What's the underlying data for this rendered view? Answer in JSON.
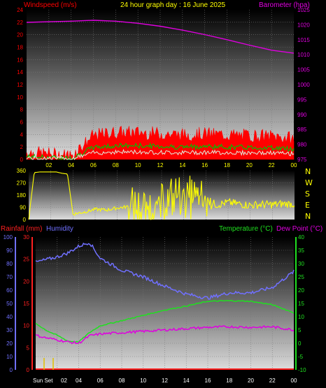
{
  "colors": {
    "wind": "#ff0000",
    "gust": "#ff0000",
    "avg_wind": "#00c000",
    "pale": "#e0f0e0",
    "baro": "#e000e0",
    "title": "#ffff00",
    "dir": "#ffff00",
    "rain": "#ff2020",
    "humidity": "#7070ff",
    "temp": "#20e020",
    "dew": "#e000e0"
  },
  "panel1": {
    "left_label": "Windspeed (m/s)",
    "title": "24 hour graph day : 16 June 2025",
    "right_label": "Barometer (hpa)",
    "left_ticks": [
      "24",
      "22",
      "20",
      "18",
      "16",
      "14",
      "12",
      "10",
      "8",
      "6",
      "4",
      "2",
      "0"
    ],
    "right_ticks": [
      "1025",
      "1020",
      "1015",
      "1010",
      "1005",
      "1000",
      "995",
      "990",
      "985",
      "980",
      "975"
    ],
    "x_ticks": [
      "02",
      "04",
      "06",
      "08",
      "10",
      "12",
      "14",
      "16",
      "18",
      "20",
      "22",
      "00"
    ]
  },
  "panel2": {
    "left_ticks": [
      "360",
      "270",
      "180",
      "90",
      "0"
    ],
    "compass": [
      "N",
      "W",
      "S",
      "E",
      "N"
    ],
    "x_ticks": [
      "02",
      "04",
      "06",
      "08",
      "10",
      "12",
      "14",
      "16",
      "18",
      "20",
      "22",
      "00"
    ]
  },
  "panel3": {
    "rain_label": "Rainfall (mm)",
    "humidity_label": "Humidity",
    "temp_label": "Temperature (°C)",
    "dew_label": "Dew Point (°C)",
    "humidity_ticks": [
      "100",
      "90",
      "80",
      "70",
      "60",
      "50",
      "40",
      "30",
      "20",
      "10",
      "0"
    ],
    "rain_ticks": [
      "30",
      "25",
      "20",
      "15",
      "10",
      "5",
      "0"
    ],
    "temp_ticks": [
      "40",
      "35",
      "30",
      "25",
      "20",
      "15",
      "10",
      "5",
      "0",
      "-5",
      "-10"
    ],
    "sunset": "Sun Set",
    "x_ticks": [
      "02",
      "04",
      "06",
      "08",
      "10",
      "12",
      "14",
      "16",
      "18",
      "20",
      "22",
      "00"
    ]
  },
  "chart_data": [
    {
      "type": "line",
      "title": "24 hour graph day : 16 June 2025",
      "xlabel": "",
      "x_hours": [
        0,
        2,
        4,
        6,
        8,
        10,
        12,
        14,
        16,
        18,
        20,
        22,
        24
      ],
      "series": [
        {
          "name": "Windspeed (m/s)",
          "axis": "left",
          "ylim": [
            0,
            24
          ],
          "values": [
            0.8,
            0.6,
            0.3,
            3.5,
            4.0,
            4.0,
            3.8,
            3.6,
            3.8,
            3.6,
            3.5,
            3.4,
            3.0
          ]
        },
        {
          "name": "Barometer (hpa)",
          "axis": "right",
          "ylim": [
            975,
            1025
          ],
          "values": [
            1020.8,
            1021.0,
            1021.2,
            1021.5,
            1021.2,
            1020.5,
            1019.5,
            1018.2,
            1016.7,
            1015.0,
            1013.2,
            1011.5,
            1010.5
          ]
        }
      ]
    },
    {
      "type": "scatter",
      "ylim": [
        0,
        360
      ],
      "x_hours": [
        0,
        0.5,
        1,
        1.5,
        2,
        2.5,
        3,
        3.5,
        4,
        5,
        6,
        7,
        8,
        9,
        10,
        11,
        12,
        13,
        14,
        15,
        16,
        17,
        18,
        19,
        20,
        21,
        22,
        23,
        24
      ],
      "values": [
        0,
        345,
        350,
        350,
        350,
        350,
        340,
        335,
        40,
        55,
        75,
        70,
        85,
        95,
        70,
        90,
        100,
        170,
        180,
        150,
        135,
        110,
        125,
        115,
        105,
        110,
        110,
        115,
        115
      ]
    },
    {
      "type": "line",
      "x_hours": [
        0,
        1,
        2,
        3,
        4,
        5,
        6,
        8,
        10,
        12,
        14,
        16,
        18,
        20,
        22,
        24
      ],
      "series": [
        {
          "name": "Humidity",
          "axis": "humidity",
          "ylim": [
            0,
            100
          ],
          "values": [
            81,
            83,
            85,
            88,
            93,
            96,
            84,
            75,
            70,
            63,
            57,
            54,
            58,
            58,
            62,
            74
          ]
        },
        {
          "name": "Temperature (°C)",
          "axis": "temp",
          "ylim": [
            -10,
            40
          ],
          "values": [
            7.5,
            4.8,
            3,
            0.8,
            0.5,
            4,
            6.6,
            8.5,
            10.5,
            12.5,
            14,
            15.8,
            16,
            15.8,
            14.5,
            11.5
          ]
        },
        {
          "name": "Dew Point (°C)",
          "axis": "temp",
          "ylim": [
            -10,
            40
          ],
          "values": [
            3,
            2,
            1.3,
            0.5,
            0,
            2.8,
            3.5,
            4,
            4.5,
            5,
            5.5,
            6,
            6.2,
            6,
            6.2,
            5
          ]
        },
        {
          "name": "Rainfall (mm)",
          "axis": "rain",
          "ylim": [
            0,
            30
          ],
          "values": [
            0,
            0,
            0,
            0,
            0,
            0,
            0,
            0,
            0,
            0,
            0,
            0,
            0,
            0,
            0,
            0
          ]
        }
      ]
    }
  ]
}
